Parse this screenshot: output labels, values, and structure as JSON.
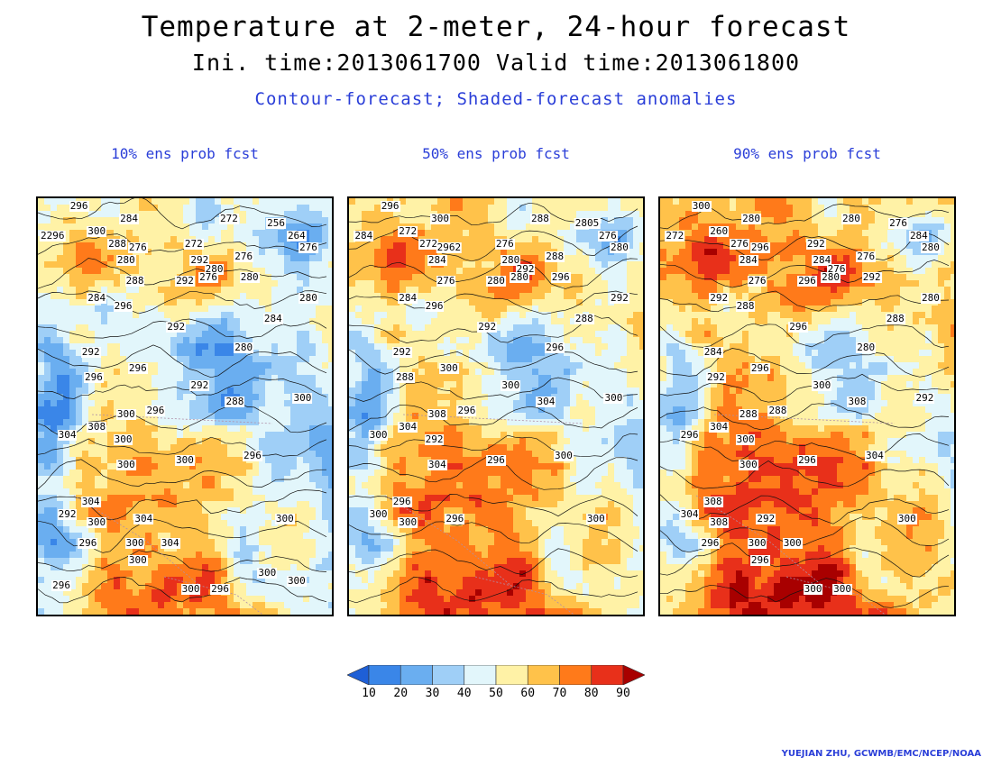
{
  "title": "Temperature at 2-meter, 24-hour forecast",
  "subtitle": "Ini. time:2013061700     Valid time:2013061800",
  "description": "Contour-forecast; Shaded-forecast anomalies",
  "panels": [
    {
      "label": "10% ens prob fcst",
      "contour_labels": [
        "296",
        "284",
        "2296",
        "300",
        "288",
        "276",
        "272",
        "256",
        "264",
        "276",
        "280",
        "272",
        "292",
        "280",
        "276",
        "288",
        "292",
        "280",
        "276",
        "280",
        "284",
        "284",
        "296",
        "292",
        "292",
        "280",
        "296",
        "296",
        "292",
        "300",
        "300",
        "296",
        "288",
        "308",
        "300",
        "304",
        "300",
        "296",
        "300",
        "304",
        "292",
        "300",
        "304",
        "300",
        "296",
        "300",
        "304",
        "300",
        "300",
        "296",
        "300",
        "300",
        "296"
      ]
    },
    {
      "label": "50% ens prob fcst",
      "contour_labels": [
        "296",
        "300",
        "284",
        "272",
        "272",
        "2962",
        "288",
        "2805",
        "276",
        "280",
        "284",
        "276",
        "280",
        "292",
        "280",
        "276",
        "280",
        "296",
        "288",
        "292",
        "288",
        "284",
        "296",
        "292",
        "292",
        "296",
        "288",
        "300",
        "300",
        "300",
        "308",
        "296",
        "304",
        "304",
        "292",
        "300",
        "296",
        "300",
        "304",
        "296",
        "300",
        "300",
        "296",
        "300"
      ]
    },
    {
      "label": "90% ens prob fcst",
      "contour_labels": [
        "300",
        "280",
        "272",
        "260",
        "276",
        "296",
        "280",
        "276",
        "284",
        "280",
        "284",
        "292",
        "284",
        "276",
        "280",
        "276",
        "296",
        "292",
        "276",
        "280",
        "288",
        "292",
        "288",
        "296",
        "284",
        "280",
        "292",
        "296",
        "300",
        "292",
        "288",
        "288",
        "308",
        "304",
        "300",
        "296",
        "296",
        "304",
        "300",
        "308",
        "304",
        "308",
        "292",
        "300",
        "296",
        "300",
        "300",
        "296",
        "300",
        "300"
      ]
    }
  ],
  "colorbar": {
    "ticks": [
      "10",
      "20",
      "30",
      "40",
      "50",
      "60",
      "70",
      "80",
      "90"
    ],
    "colors": [
      "#1e5fd6",
      "#3a86e8",
      "#6aaef0",
      "#9fcff7",
      "#e2f6fb",
      "#fff2a6",
      "#ffc24a",
      "#ff7a1a",
      "#e8301a",
      "#a80000"
    ]
  },
  "credit": "YUEJIAN ZHU, GCWMB/EMC/NCEP/NOAA"
}
